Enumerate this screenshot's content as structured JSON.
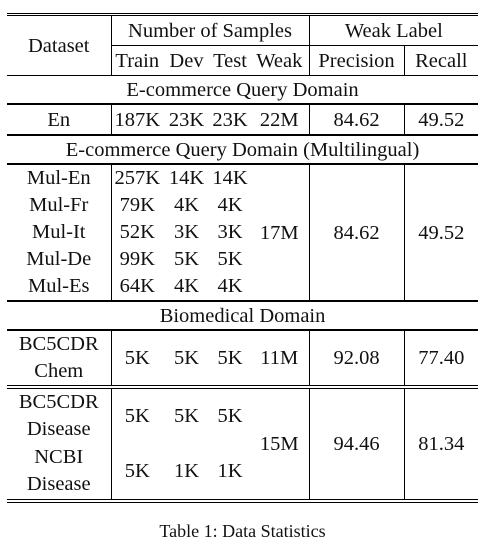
{
  "header": {
    "dataset": "Dataset",
    "num_samples": "Number of Samples",
    "weak_label": "Weak Label",
    "train": "Train",
    "dev": "Dev",
    "test": "Test",
    "weak": "Weak",
    "precision": "Precision",
    "recall": "Recall"
  },
  "sections": {
    "ecom": "E-commerce Query Domain",
    "ecom_multi": "E-commerce Query Domain (Multilingual)",
    "bio": "Biomedical Domain"
  },
  "en": {
    "name": "En",
    "train": "187K",
    "dev": "23K",
    "test": "23K",
    "weak": "22M",
    "precision": "84.62",
    "recall": "49.52"
  },
  "mul": {
    "rows": [
      {
        "name": "Mul-En",
        "train": "257K",
        "dev": "14K",
        "test": "14K"
      },
      {
        "name": "Mul-Fr",
        "train": "79K",
        "dev": "4K",
        "test": "4K"
      },
      {
        "name": "Mul-It",
        "train": "52K",
        "dev": "3K",
        "test": "3K"
      },
      {
        "name": "Mul-De",
        "train": "99K",
        "dev": "5K",
        "test": "5K"
      },
      {
        "name": "Mul-Es",
        "train": "64K",
        "dev": "4K",
        "test": "4K"
      }
    ],
    "weak": "17M",
    "precision": "84.62",
    "recall": "49.52"
  },
  "chem": {
    "name_line1": "BC5CDR",
    "name_line2": "Chem",
    "train": "5K",
    "dev": "5K",
    "test": "5K",
    "weak": "11M",
    "precision": "92.08",
    "recall": "77.40"
  },
  "disease": {
    "bc5": {
      "name_line1": "BC5CDR",
      "name_line2": "Disease",
      "train": "5K",
      "dev": "5K",
      "test": "5K"
    },
    "ncbi": {
      "name_line1": "NCBI",
      "name_line2": "Disease",
      "train": "5K",
      "dev": "1K",
      "test": "1K"
    },
    "weak": "15M",
    "precision": "94.46",
    "recall": "81.34"
  },
  "caption": "Table 1: Data Statistics"
}
